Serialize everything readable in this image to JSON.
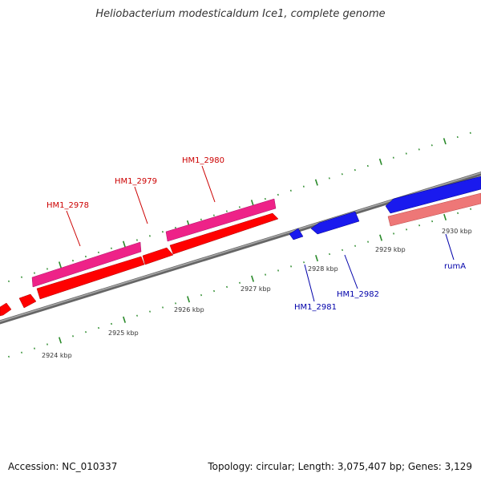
{
  "title": "Heliobacterium modesticaldum Ice1, complete genome",
  "footer": {
    "accession": "Accession: NC_010337",
    "summary": "Topology: circular; Length: 3,075,407 bp; Genes: 3,129"
  },
  "colors": {
    "backbone": "#888888",
    "tick": "#2a8a2a",
    "forward_cds": "#ff0000",
    "forward_gene": "#ee2288",
    "reverse_cds": "#1a1aee",
    "reverse_gene": "#ee7777",
    "forward_label": "#cc0000",
    "reverse_label": "#0000aa"
  },
  "scale_labels": [
    "2924 kbp",
    "2925 kbp",
    "2926 kbp",
    "2927 kbp",
    "2928 kbp",
    "2929 kbp",
    "2930 kbp"
  ],
  "gene_labels": [
    {
      "name": "HM1_2978",
      "strand": "forward"
    },
    {
      "name": "HM1_2979",
      "strand": "forward"
    },
    {
      "name": "HM1_2980",
      "strand": "forward"
    },
    {
      "name": "HM1_2981",
      "strand": "reverse"
    },
    {
      "name": "HM1_2982",
      "strand": "reverse"
    },
    {
      "name": "rumA",
      "strand": "reverse"
    }
  ]
}
